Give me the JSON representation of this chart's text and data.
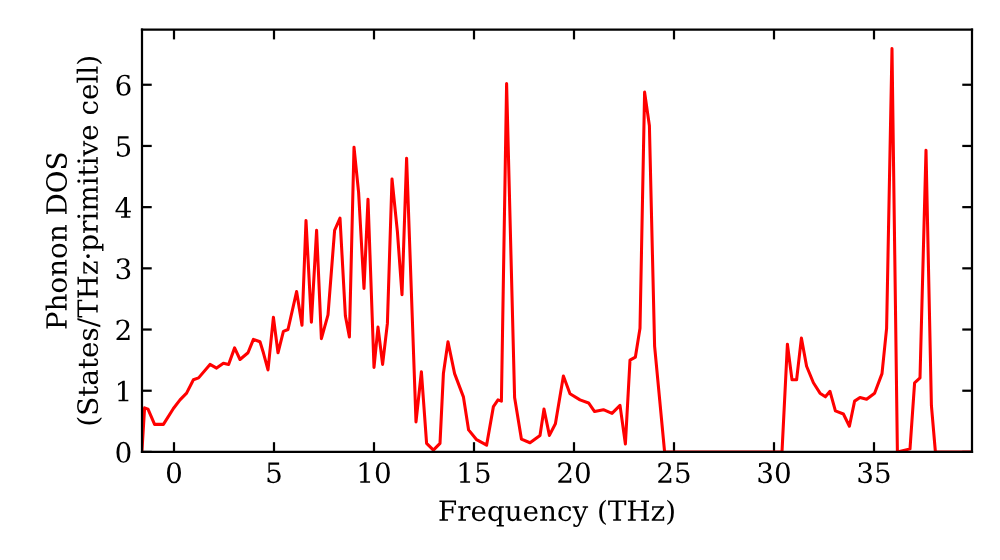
{
  "chart_data": {
    "type": "line",
    "xlabel": "Frequency (THz)",
    "ylabel": "Phonon DOS\n(States/THz·primitive cell)",
    "series": [
      {
        "color": "#ff0000",
        "x": [
          -1.6,
          -1.47,
          -1.3,
          -0.97,
          -0.53,
          -0.03,
          0.3,
          0.63,
          0.97,
          1.23,
          1.8,
          2.13,
          2.47,
          2.73,
          3.03,
          3.3,
          3.7,
          3.97,
          4.3,
          4.47,
          4.7,
          4.97,
          5.2,
          5.47,
          5.7,
          6.13,
          6.4,
          6.6,
          6.87,
          7.13,
          7.37,
          7.7,
          8.03,
          8.3,
          8.57,
          8.77,
          9.0,
          9.23,
          9.5,
          9.7,
          10.0,
          10.2,
          10.43,
          10.67,
          10.9,
          11.17,
          11.4,
          11.63,
          12.1,
          12.37,
          12.63,
          12.97,
          13.3,
          13.47,
          13.7,
          14.03,
          14.47,
          14.73,
          15.13,
          15.63,
          15.97,
          16.2,
          16.37,
          16.63,
          17.03,
          17.37,
          17.8,
          18.3,
          18.5,
          18.77,
          19.07,
          19.47,
          19.8,
          20.3,
          20.73,
          21.03,
          21.47,
          21.9,
          22.3,
          22.57,
          22.8,
          23.07,
          23.3,
          23.53,
          23.77,
          24.03,
          24.53,
          30.4,
          30.67,
          30.9,
          31.13,
          31.37,
          31.63,
          31.97,
          32.3,
          32.57,
          32.8,
          33.07,
          33.47,
          33.77,
          34.03,
          34.3,
          34.63,
          35.03,
          35.4,
          35.63,
          35.9,
          36.17,
          36.8,
          37.03,
          37.3,
          37.6,
          37.87,
          38.07,
          39.8
        ],
        "values": [
          0.03,
          0.72,
          0.7,
          0.45,
          0.45,
          0.71,
          0.85,
          0.96,
          1.18,
          1.21,
          1.43,
          1.37,
          1.45,
          1.43,
          1.7,
          1.51,
          1.62,
          1.84,
          1.8,
          1.62,
          1.34,
          2.2,
          1.62,
          1.97,
          2.0,
          2.62,
          2.07,
          3.78,
          2.12,
          3.62,
          1.85,
          2.24,
          3.62,
          3.82,
          2.22,
          1.88,
          4.98,
          4.24,
          2.67,
          4.13,
          1.38,
          2.04,
          1.43,
          2.1,
          4.46,
          3.6,
          2.57,
          4.8,
          0.49,
          1.31,
          0.14,
          0.03,
          0.14,
          1.28,
          1.8,
          1.28,
          0.9,
          0.36,
          0.2,
          0.11,
          0.74,
          0.85,
          0.83,
          6.02,
          0.89,
          0.21,
          0.15,
          0.27,
          0.7,
          0.27,
          0.46,
          1.24,
          0.95,
          0.85,
          0.8,
          0.66,
          0.69,
          0.63,
          0.76,
          0.13,
          1.5,
          1.55,
          2.02,
          5.88,
          5.33,
          1.73,
          0,
          0,
          1.76,
          1.18,
          1.18,
          1.86,
          1.4,
          1.13,
          0.96,
          0.9,
          0.99,
          0.67,
          0.62,
          0.42,
          0.83,
          0.89,
          0.86,
          0.96,
          1.28,
          2.02,
          6.59,
          0,
          0.05,
          1.13,
          1.21,
          4.93,
          0.76,
          0,
          0
        ]
      }
    ],
    "xlim": [
      -1.6,
      39.9
    ],
    "xticks": [
      0,
      5,
      10,
      15,
      20,
      25,
      30,
      35
    ],
    "ylim": [
      0,
      6.9
    ],
    "yticks": [
      0,
      1,
      2,
      3,
      4,
      5,
      6
    ],
    "grid": false,
    "legend": false,
    "marker": "none",
    "line_style": "solid"
  }
}
